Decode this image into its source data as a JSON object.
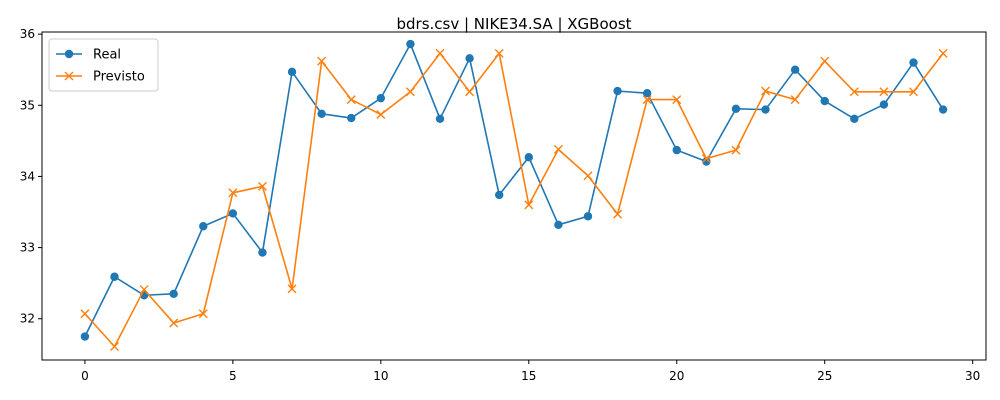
{
  "chart_data": {
    "type": "line",
    "title": "bdrs.csv | NIKE34.SA | XGBoost",
    "xlabel": "",
    "ylabel": "",
    "xlim": [
      -1.45,
      30.45
    ],
    "ylim": [
      31.42,
      36.03
    ],
    "x_ticks": [
      0,
      5,
      10,
      15,
      20,
      25,
      30
    ],
    "y_ticks": [
      32,
      33,
      34,
      35,
      36
    ],
    "legend_position": "top-left",
    "grid": false,
    "x": [
      0,
      1,
      2,
      3,
      4,
      5,
      6,
      7,
      8,
      9,
      10,
      11,
      12,
      13,
      14,
      15,
      16,
      17,
      18,
      19,
      20,
      21,
      22,
      23,
      24,
      25,
      26,
      27,
      28,
      29
    ],
    "series": [
      {
        "name": "Real",
        "color": "#1f77b4",
        "marker": "circle",
        "values": [
          31.75,
          32.59,
          32.33,
          32.35,
          33.3,
          33.48,
          32.93,
          35.47,
          34.88,
          34.82,
          35.1,
          35.86,
          34.81,
          35.66,
          33.74,
          34.27,
          33.32,
          33.44,
          35.2,
          35.17,
          34.37,
          34.21,
          34.95,
          34.94,
          35.5,
          35.06,
          34.81,
          35.01,
          35.6,
          34.94
        ]
      },
      {
        "name": "Previsto",
        "color": "#ff7f0e",
        "marker": "x",
        "values": [
          32.07,
          31.61,
          32.41,
          31.94,
          32.07,
          33.77,
          33.86,
          32.42,
          35.62,
          35.08,
          34.87,
          35.19,
          35.73,
          35.19,
          35.73,
          33.6,
          34.38,
          34.01,
          33.47,
          35.08,
          35.08,
          34.25,
          34.37,
          35.2,
          35.08,
          35.62,
          35.19,
          35.19,
          35.19,
          35.73
        ]
      }
    ]
  }
}
